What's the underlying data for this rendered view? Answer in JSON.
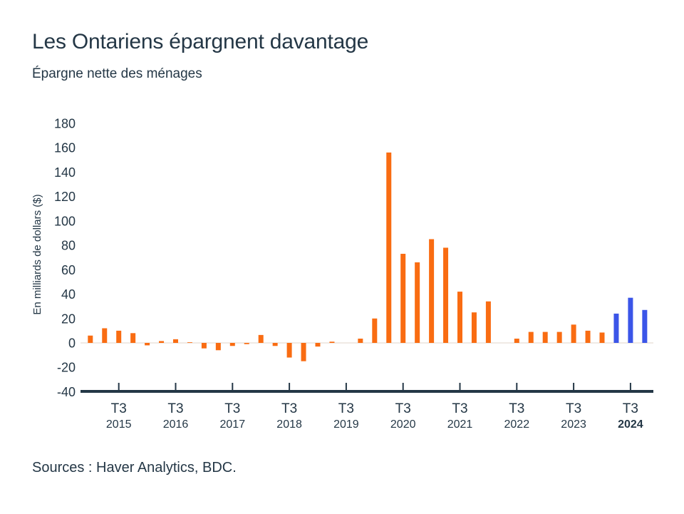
{
  "chart_data": {
    "type": "bar",
    "title": "Les Ontariens épargnent davantage",
    "subtitle": "Épargne nette des ménages",
    "ylabel": "En milliards de dollars ($)",
    "source": "Sources : Haver Analytics, BDC.",
    "ylim": [
      -40,
      180
    ],
    "ytick_step": 20,
    "yticks": [
      180,
      160,
      140,
      120,
      100,
      80,
      60,
      40,
      20,
      0,
      -20,
      -40
    ],
    "grid": false,
    "legend": "none",
    "colors": {
      "actual": "#F96C12",
      "forecast": "#3B55E8",
      "text": "#243746",
      "axis": "#243746",
      "zero_line": "#EBE3DB"
    },
    "x_ticks": [
      {
        "quarter": "T3",
        "year": "2015",
        "emphasis": false
      },
      {
        "quarter": "T3",
        "year": "2016",
        "emphasis": false
      },
      {
        "quarter": "T3",
        "year": "2017",
        "emphasis": false
      },
      {
        "quarter": "T3",
        "year": "2018",
        "emphasis": false
      },
      {
        "quarter": "T3",
        "year": "2019",
        "emphasis": false
      },
      {
        "quarter": "T3",
        "year": "2020",
        "emphasis": false
      },
      {
        "quarter": "T3",
        "year": "2021",
        "emphasis": false
      },
      {
        "quarter": "T3",
        "year": "2022",
        "emphasis": false
      },
      {
        "quarter": "T3",
        "year": "2023",
        "emphasis": false
      },
      {
        "quarter": "T3",
        "year": "2024",
        "emphasis": true
      }
    ],
    "points": [
      {
        "period": "T1 2015",
        "value": 6,
        "forecast": false
      },
      {
        "period": "T2 2015",
        "value": 12,
        "forecast": false
      },
      {
        "period": "T3 2015",
        "value": 10,
        "forecast": false
      },
      {
        "period": "T4 2015",
        "value": 8,
        "forecast": false
      },
      {
        "period": "T1 2016",
        "value": -2,
        "forecast": false
      },
      {
        "period": "T2 2016",
        "value": 1.5,
        "forecast": false
      },
      {
        "period": "T3 2016",
        "value": 3,
        "forecast": false
      },
      {
        "period": "T4 2016",
        "value": 0.5,
        "forecast": false
      },
      {
        "period": "T1 2017",
        "value": -4.5,
        "forecast": false
      },
      {
        "period": "T2 2017",
        "value": -6,
        "forecast": false
      },
      {
        "period": "T3 2017",
        "value": -2.5,
        "forecast": false
      },
      {
        "period": "T4 2017",
        "value": -1,
        "forecast": false
      },
      {
        "period": "T1 2018",
        "value": 6.5,
        "forecast": false
      },
      {
        "period": "T2 2018",
        "value": -2.5,
        "forecast": false
      },
      {
        "period": "T3 2018",
        "value": -12,
        "forecast": false
      },
      {
        "period": "T4 2018",
        "value": -15,
        "forecast": false
      },
      {
        "period": "T1 2019",
        "value": -3,
        "forecast": false
      },
      {
        "period": "T2 2019",
        "value": 1,
        "forecast": false
      },
      {
        "period": "T3 2019",
        "value": 0,
        "forecast": false
      },
      {
        "period": "T4 2019",
        "value": 3.5,
        "forecast": false
      },
      {
        "period": "T1 2020",
        "value": 20,
        "forecast": false
      },
      {
        "period": "T2 2020",
        "value": 156,
        "forecast": false
      },
      {
        "period": "T3 2020",
        "value": 73,
        "forecast": false
      },
      {
        "period": "T4 2020",
        "value": 66,
        "forecast": false
      },
      {
        "period": "T1 2021",
        "value": 85,
        "forecast": false
      },
      {
        "period": "T2 2021",
        "value": 78,
        "forecast": false
      },
      {
        "period": "T3 2021",
        "value": 42,
        "forecast": false
      },
      {
        "period": "T4 2021",
        "value": 25,
        "forecast": false
      },
      {
        "period": "T1 2022",
        "value": 34,
        "forecast": false
      },
      {
        "period": "T2 2022",
        "value": 0,
        "forecast": false
      },
      {
        "period": "T3 2022",
        "value": 3.5,
        "forecast": false
      },
      {
        "period": "T4 2022",
        "value": 9,
        "forecast": false
      },
      {
        "period": "T1 2023",
        "value": 9,
        "forecast": false
      },
      {
        "period": "T2 2023",
        "value": 9,
        "forecast": false
      },
      {
        "period": "T3 2023",
        "value": 15,
        "forecast": false
      },
      {
        "period": "T4 2023",
        "value": 10,
        "forecast": false
      },
      {
        "period": "T1 2024",
        "value": 8.5,
        "forecast": false
      },
      {
        "period": "T2 2024",
        "value": 24,
        "forecast": true
      },
      {
        "period": "T3 2024",
        "value": 37,
        "forecast": true
      },
      {
        "period": "T4 2024",
        "value": 27,
        "forecast": true
      }
    ]
  }
}
